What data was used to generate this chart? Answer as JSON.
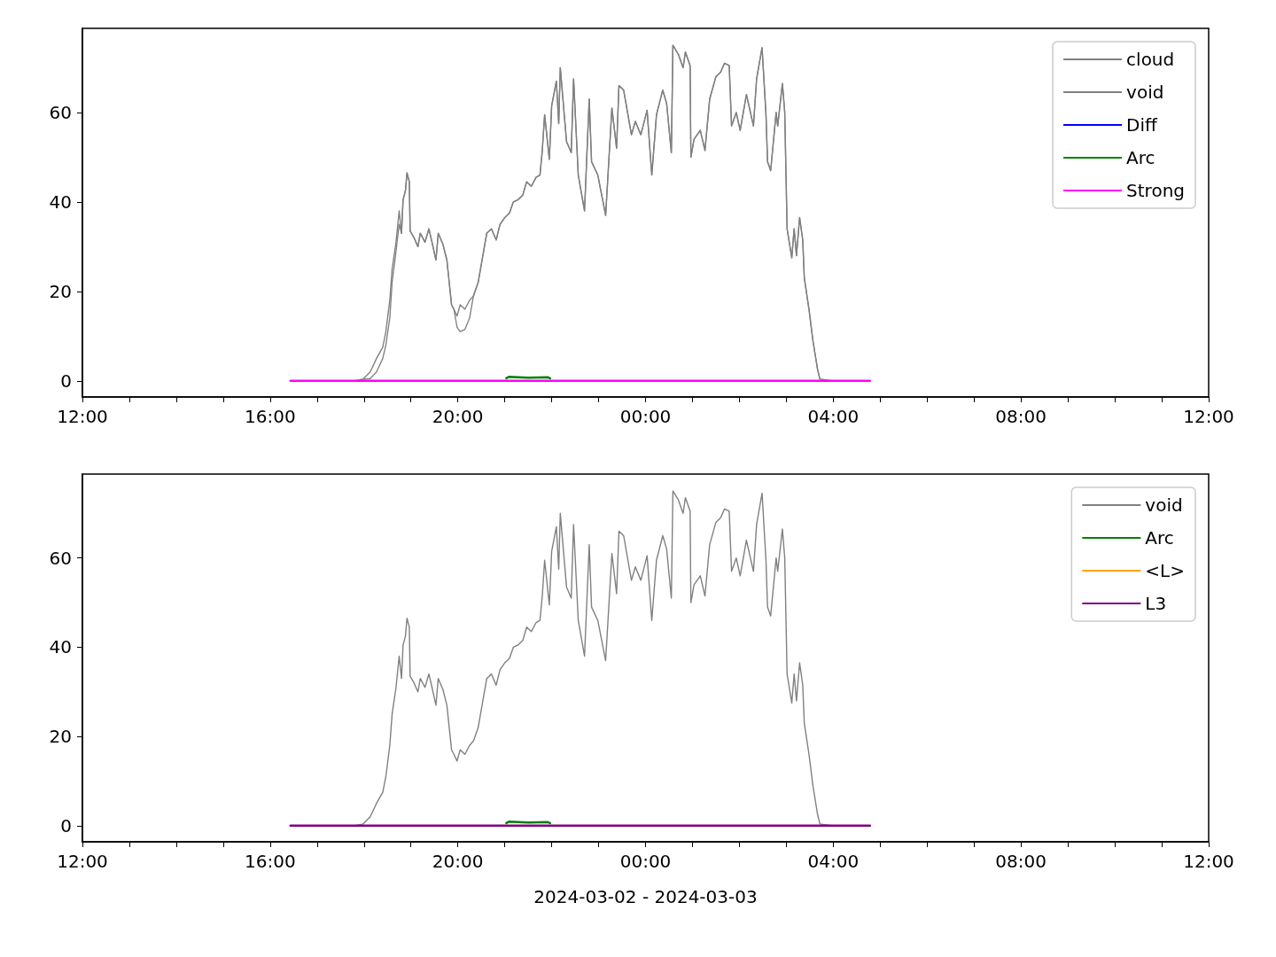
{
  "chart_data": [
    {
      "type": "line",
      "xlim": [
        "2024-03-02T12:00",
        "2024-03-03T12:00"
      ],
      "xticks": [
        {
          "value": "2024-03-02T12:00",
          "label": "12:00"
        },
        {
          "value": "2024-03-02T13:00",
          "label": null
        },
        {
          "value": "2024-03-02T14:00",
          "label": null
        },
        {
          "value": "2024-03-02T15:00",
          "label": null
        },
        {
          "value": "2024-03-02T16:00",
          "label": "16:00"
        },
        {
          "value": "2024-03-02T17:00",
          "label": null
        },
        {
          "value": "2024-03-02T18:00",
          "label": null
        },
        {
          "value": "2024-03-02T19:00",
          "label": null
        },
        {
          "value": "2024-03-02T20:00",
          "label": "20:00"
        },
        {
          "value": "2024-03-02T21:00",
          "label": null
        },
        {
          "value": "2024-03-02T22:00",
          "label": null
        },
        {
          "value": "2024-03-02T23:00",
          "label": null
        },
        {
          "value": "2024-03-03T00:00",
          "label": "00:00"
        },
        {
          "value": "2024-03-03T01:00",
          "label": null
        },
        {
          "value": "2024-03-03T02:00",
          "label": null
        },
        {
          "value": "2024-03-03T03:00",
          "label": null
        },
        {
          "value": "2024-03-03T04:00",
          "label": "04:00"
        },
        {
          "value": "2024-03-03T05:00",
          "label": null
        },
        {
          "value": "2024-03-03T06:00",
          "label": null
        },
        {
          "value": "2024-03-03T07:00",
          "label": null
        },
        {
          "value": "2024-03-03T08:00",
          "label": "08:00"
        },
        {
          "value": "2024-03-03T09:00",
          "label": null
        },
        {
          "value": "2024-03-03T10:00",
          "label": null
        },
        {
          "value": "2024-03-03T11:00",
          "label": null
        },
        {
          "value": "2024-03-03T12:00",
          "label": "12:00"
        }
      ],
      "ylim": [
        -3.6,
        78.8
      ],
      "yticks": [
        0,
        20,
        40,
        60
      ],
      "grid": false,
      "legend": "top right",
      "series": [
        {
          "name": "cloud",
          "color": "#808080",
          "line_style": "dashed",
          "x": [
            "2024-03-02T17:59",
            "2024-03-02T18:08",
            "2024-03-02T18:16",
            "2024-03-02T18:24",
            "2024-03-02T18:28",
            "2024-03-02T18:33",
            "2024-03-02T18:36",
            "2024-03-02T18:41",
            "2024-03-02T18:45",
            "2024-03-02T18:48",
            "2024-03-02T18:50",
            "2024-03-02T18:53",
            "2024-03-02T18:55",
            "2024-03-02T18:58",
            "2024-03-02T18:59",
            "2024-03-02T19:04",
            "2024-03-02T19:09",
            "2024-03-02T19:12",
            "2024-03-02T19:18",
            "2024-03-02T19:23",
            "2024-03-02T19:27",
            "2024-03-02T19:32",
            "2024-03-02T19:35",
            "2024-03-02T19:41",
            "2024-03-02T19:46",
            "2024-03-02T19:52",
            "2024-03-02T19:55",
            "2024-03-02T19:59",
            "2024-03-02T20:03",
            "2024-03-02T20:09",
            "2024-03-02T20:15",
            "2024-03-02T20:20",
            "2024-03-02T20:26",
            "2024-03-02T20:32",
            "2024-03-02T20:37",
            "2024-03-02T20:43",
            "2024-03-02T20:49",
            "2024-03-02T20:54",
            "2024-03-02T21:00",
            "2024-03-02T21:06",
            "2024-03-02T21:11",
            "2024-03-02T21:17",
            "2024-03-02T21:23",
            "2024-03-02T21:28",
            "2024-03-02T21:34",
            "2024-03-02T21:40",
            "2024-03-02T21:45",
            "2024-03-02T21:48",
            "2024-03-02T21:51",
            "2024-03-02T21:57",
            "2024-03-02T22:00",
            "2024-03-02T22:06",
            "2024-03-02T22:09",
            "2024-03-02T22:11",
            "2024-03-02T22:19",
            "2024-03-02T22:25",
            "2024-03-02T22:28",
            "2024-03-02T22:34",
            "2024-03-02T22:42",
            "2024-03-02T22:48",
            "2024-03-02T22:51",
            "2024-03-02T22:59",
            "2024-03-02T23:09",
            "2024-03-02T23:17",
            "2024-03-02T23:23",
            "2024-03-02T23:26",
            "2024-03-02T23:32",
            "2024-03-02T23:42",
            "2024-03-02T23:47",
            "2024-03-02T23:54",
            "2024-03-03T00:02",
            "2024-03-03T00:08",
            "2024-03-03T00:14",
            "2024-03-03T00:22",
            "2024-03-03T00:27",
            "2024-03-03T00:33",
            "2024-03-03T00:35",
            "2024-03-03T00:42",
            "2024-03-03T00:48",
            "2024-03-03T00:51",
            "2024-03-03T00:57",
            "2024-03-03T00:58",
            "2024-03-03T01:02",
            "2024-03-03T01:10",
            "2024-03-03T01:16",
            "2024-03-03T01:22",
            "2024-03-03T01:30",
            "2024-03-03T01:36",
            "2024-03-03T01:41",
            "2024-03-03T01:47",
            "2024-03-03T01:50",
            "2024-03-03T01:56",
            "2024-03-03T02:01",
            "2024-03-03T02:09",
            "2024-03-03T02:18",
            "2024-03-03T02:22",
            "2024-03-03T02:29",
            "2024-03-03T02:34",
            "2024-03-03T02:36",
            "2024-03-03T02:40",
            "2024-03-03T02:47",
            "2024-03-03T02:49",
            "2024-03-03T02:55",
            "2024-03-03T02:58",
            "2024-03-03T03:01",
            "2024-03-03T03:07",
            "2024-03-03T03:10",
            "2024-03-03T03:13",
            "2024-03-03T03:17",
            "2024-03-03T03:21",
            "2024-03-03T03:23",
            "2024-03-03T03:29",
            "2024-03-03T03:34",
            "2024-03-03T03:40",
            "2024-03-03T03:43"
          ],
          "values": [
            0.4,
            0.5,
            2,
            5,
            8,
            14,
            22,
            29,
            35,
            33,
            40.5,
            42.5,
            46.5,
            44.5,
            33.5,
            32,
            30,
            33,
            31,
            34,
            31,
            27,
            33,
            30.5,
            27,
            17,
            16,
            12,
            11,
            11.5,
            14,
            19,
            22,
            28,
            33,
            34,
            31.5,
            35,
            36.5,
            37.5,
            40,
            40.5,
            41.5,
            44.5,
            43.5,
            45.5,
            46,
            51.5,
            59.5,
            49.5,
            61.5,
            67,
            57.5,
            70,
            53.5,
            51,
            67.5,
            46,
            38,
            63,
            49,
            46,
            37,
            61,
            52,
            66,
            65,
            55,
            58,
            55,
            60.5,
            46,
            59.5,
            65,
            62,
            51,
            75,
            73,
            70,
            73.5,
            70.5,
            50,
            54,
            56,
            51.5,
            63,
            68,
            69,
            71,
            70.5,
            57,
            60,
            56,
            64,
            57,
            67.5,
            74.5,
            59.5,
            49,
            47,
            60,
            57,
            66.5,
            60,
            34,
            27.5,
            34,
            28,
            36.5,
            31.5,
            23,
            16,
            9,
            2.5,
            0.4
          ]
        },
        {
          "name": "void",
          "color": "#808080",
          "x": [
            "2024-03-02T16:26",
            "2024-03-02T17:47",
            "2024-03-02T17:59",
            "2024-03-02T18:08",
            "2024-03-02T18:16",
            "2024-03-02T18:24",
            "2024-03-02T18:28",
            "2024-03-02T18:33",
            "2024-03-02T18:36",
            "2024-03-02T18:41",
            "2024-03-02T18:45",
            "2024-03-02T18:48",
            "2024-03-02T18:50",
            "2024-03-02T18:53",
            "2024-03-02T18:55",
            "2024-03-02T18:58",
            "2024-03-02T18:59",
            "2024-03-02T19:04",
            "2024-03-02T19:09",
            "2024-03-02T19:12",
            "2024-03-02T19:18",
            "2024-03-02T19:23",
            "2024-03-02T19:27",
            "2024-03-02T19:32",
            "2024-03-02T19:35",
            "2024-03-02T19:41",
            "2024-03-02T19:46",
            "2024-03-02T19:52",
            "2024-03-02T19:55",
            "2024-03-02T19:59",
            "2024-03-02T20:03",
            "2024-03-02T20:09",
            "2024-03-02T20:15",
            "2024-03-02T20:20",
            "2024-03-02T20:26",
            "2024-03-02T20:32",
            "2024-03-02T20:37",
            "2024-03-02T20:43",
            "2024-03-02T20:49",
            "2024-03-02T20:54",
            "2024-03-02T21:00",
            "2024-03-02T21:06",
            "2024-03-02T21:11",
            "2024-03-02T21:17",
            "2024-03-02T21:23",
            "2024-03-02T21:28",
            "2024-03-02T21:34",
            "2024-03-02T21:40",
            "2024-03-02T21:45",
            "2024-03-02T21:48",
            "2024-03-02T21:51",
            "2024-03-02T21:57",
            "2024-03-02T22:00",
            "2024-03-02T22:06",
            "2024-03-02T22:09",
            "2024-03-02T22:11",
            "2024-03-02T22:19",
            "2024-03-02T22:25",
            "2024-03-02T22:28",
            "2024-03-02T22:34",
            "2024-03-02T22:42",
            "2024-03-02T22:48",
            "2024-03-02T22:51",
            "2024-03-02T22:59",
            "2024-03-02T23:09",
            "2024-03-02T23:17",
            "2024-03-02T23:23",
            "2024-03-02T23:26",
            "2024-03-02T23:32",
            "2024-03-02T23:42",
            "2024-03-02T23:47",
            "2024-03-02T23:54",
            "2024-03-03T00:02",
            "2024-03-03T00:08",
            "2024-03-03T00:14",
            "2024-03-03T00:22",
            "2024-03-03T00:27",
            "2024-03-03T00:33",
            "2024-03-03T00:35",
            "2024-03-03T00:42",
            "2024-03-03T00:48",
            "2024-03-03T00:51",
            "2024-03-03T00:57",
            "2024-03-03T00:58",
            "2024-03-03T01:02",
            "2024-03-03T01:10",
            "2024-03-03T01:16",
            "2024-03-03T01:22",
            "2024-03-03T01:30",
            "2024-03-03T01:36",
            "2024-03-03T01:41",
            "2024-03-03T01:47",
            "2024-03-03T01:50",
            "2024-03-03T01:56",
            "2024-03-03T02:01",
            "2024-03-03T02:09",
            "2024-03-03T02:18",
            "2024-03-03T02:22",
            "2024-03-03T02:29",
            "2024-03-03T02:34",
            "2024-03-03T02:36",
            "2024-03-03T02:40",
            "2024-03-03T02:47",
            "2024-03-03T02:49",
            "2024-03-03T02:55",
            "2024-03-03T02:58",
            "2024-03-03T03:01",
            "2024-03-03T03:07",
            "2024-03-03T03:10",
            "2024-03-03T03:13",
            "2024-03-03T03:17",
            "2024-03-03T03:21",
            "2024-03-03T03:23",
            "2024-03-03T03:29",
            "2024-03-03T03:34",
            "2024-03-03T03:40",
            "2024-03-03T03:43",
            "2024-03-03T04:00",
            "2024-03-03T04:47"
          ],
          "values": [
            0,
            0,
            0.4,
            2,
            5,
            7.5,
            11,
            18,
            25,
            31,
            38,
            33,
            40.5,
            42.5,
            46.5,
            44.5,
            33.5,
            32,
            30,
            33,
            31,
            34,
            31,
            27,
            33,
            30.5,
            27,
            17,
            16,
            14.5,
            17,
            16,
            18,
            19,
            22,
            28,
            33,
            34,
            31.5,
            35,
            36.5,
            37.5,
            40,
            40.5,
            41.5,
            44.5,
            43.5,
            45.5,
            46,
            51.5,
            59.5,
            49.5,
            61.5,
            67,
            57.5,
            70,
            53.5,
            51,
            67.5,
            46,
            38,
            63,
            49,
            46,
            37,
            61,
            52,
            66,
            65,
            55,
            58,
            55,
            60.5,
            46,
            59.5,
            65,
            62,
            51,
            75,
            73,
            70,
            73.5,
            70.5,
            50,
            54,
            56,
            51.5,
            63,
            68,
            69,
            71,
            70.5,
            57,
            60,
            56,
            64,
            57,
            67.5,
            74.5,
            59.5,
            49,
            47,
            60,
            57,
            66.5,
            60,
            34,
            27.5,
            34,
            28,
            36.5,
            31.5,
            23,
            16,
            9,
            2.5,
            0.4,
            0,
            0
          ]
        },
        {
          "name": "Diff",
          "color": "#0000ff"
        },
        {
          "name": "Arc",
          "color": "#008000",
          "x": [
            "2024-03-02T21:02",
            "2024-03-02T21:05",
            "2024-03-02T21:30",
            "2024-03-02T21:55",
            "2024-03-02T21:58"
          ],
          "values": [
            0.6,
            0.9,
            0.7,
            0.8,
            0.6
          ]
        },
        {
          "name": "Strong",
          "color": "#ff00ff",
          "x": [
            "2024-03-02T16:26",
            "2024-03-03T04:47"
          ],
          "values": [
            0,
            0
          ]
        }
      ]
    },
    {
      "type": "line",
      "xlabel": "2024-03-02 - 2024-03-03",
      "xlim": [
        "2024-03-02T12:00",
        "2024-03-03T12:00"
      ],
      "xticks": [
        {
          "value": "2024-03-02T12:00",
          "label": "12:00"
        },
        {
          "value": "2024-03-02T13:00",
          "label": null
        },
        {
          "value": "2024-03-02T14:00",
          "label": null
        },
        {
          "value": "2024-03-02T15:00",
          "label": null
        },
        {
          "value": "2024-03-02T16:00",
          "label": "16:00"
        },
        {
          "value": "2024-03-02T17:00",
          "label": null
        },
        {
          "value": "2024-03-02T18:00",
          "label": null
        },
        {
          "value": "2024-03-02T19:00",
          "label": null
        },
        {
          "value": "2024-03-02T20:00",
          "label": "20:00"
        },
        {
          "value": "2024-03-02T21:00",
          "label": null
        },
        {
          "value": "2024-03-02T22:00",
          "label": null
        },
        {
          "value": "2024-03-02T23:00",
          "label": null
        },
        {
          "value": "2024-03-03T00:00",
          "label": "00:00"
        },
        {
          "value": "2024-03-03T01:00",
          "label": null
        },
        {
          "value": "2024-03-03T02:00",
          "label": null
        },
        {
          "value": "2024-03-03T03:00",
          "label": null
        },
        {
          "value": "2024-03-03T04:00",
          "label": "04:00"
        },
        {
          "value": "2024-03-03T05:00",
          "label": null
        },
        {
          "value": "2024-03-03T06:00",
          "label": null
        },
        {
          "value": "2024-03-03T07:00",
          "label": null
        },
        {
          "value": "2024-03-03T08:00",
          "label": "08:00"
        },
        {
          "value": "2024-03-03T09:00",
          "label": null
        },
        {
          "value": "2024-03-03T10:00",
          "label": null
        },
        {
          "value": "2024-03-03T11:00",
          "label": null
        },
        {
          "value": "2024-03-03T12:00",
          "label": "12:00"
        }
      ],
      "ylim": [
        -3.6,
        78.8
      ],
      "yticks": [
        0,
        20,
        40,
        60
      ],
      "grid": false,
      "legend": "top right",
      "series": [
        {
          "name": "void",
          "color": "#808080",
          "x": [
            "2024-03-02T16:26",
            "2024-03-02T17:47",
            "2024-03-02T17:59",
            "2024-03-02T18:08",
            "2024-03-02T18:16",
            "2024-03-02T18:24",
            "2024-03-02T18:28",
            "2024-03-02T18:33",
            "2024-03-02T18:36",
            "2024-03-02T18:41",
            "2024-03-02T18:45",
            "2024-03-02T18:48",
            "2024-03-02T18:50",
            "2024-03-02T18:53",
            "2024-03-02T18:55",
            "2024-03-02T18:58",
            "2024-03-02T18:59",
            "2024-03-02T19:04",
            "2024-03-02T19:09",
            "2024-03-02T19:12",
            "2024-03-02T19:18",
            "2024-03-02T19:23",
            "2024-03-02T19:27",
            "2024-03-02T19:32",
            "2024-03-02T19:35",
            "2024-03-02T19:41",
            "2024-03-02T19:46",
            "2024-03-02T19:52",
            "2024-03-02T19:55",
            "2024-03-02T19:59",
            "2024-03-02T20:03",
            "2024-03-02T20:09",
            "2024-03-02T20:15",
            "2024-03-02T20:20",
            "2024-03-02T20:26",
            "2024-03-02T20:32",
            "2024-03-02T20:37",
            "2024-03-02T20:43",
            "2024-03-02T20:49",
            "2024-03-02T20:54",
            "2024-03-02T21:00",
            "2024-03-02T21:06",
            "2024-03-02T21:11",
            "2024-03-02T21:17",
            "2024-03-02T21:23",
            "2024-03-02T21:28",
            "2024-03-02T21:34",
            "2024-03-02T21:40",
            "2024-03-02T21:45",
            "2024-03-02T21:48",
            "2024-03-02T21:51",
            "2024-03-02T21:57",
            "2024-03-02T22:00",
            "2024-03-02T22:06",
            "2024-03-02T22:09",
            "2024-03-02T22:11",
            "2024-03-02T22:19",
            "2024-03-02T22:25",
            "2024-03-02T22:28",
            "2024-03-02T22:34",
            "2024-03-02T22:42",
            "2024-03-02T22:48",
            "2024-03-02T22:51",
            "2024-03-02T22:59",
            "2024-03-02T23:09",
            "2024-03-02T23:17",
            "2024-03-02T23:23",
            "2024-03-02T23:26",
            "2024-03-02T23:32",
            "2024-03-02T23:42",
            "2024-03-02T23:47",
            "2024-03-02T23:54",
            "2024-03-03T00:02",
            "2024-03-03T00:08",
            "2024-03-03T00:14",
            "2024-03-03T00:22",
            "2024-03-03T00:27",
            "2024-03-03T00:33",
            "2024-03-03T00:35",
            "2024-03-03T00:42",
            "2024-03-03T00:48",
            "2024-03-03T00:51",
            "2024-03-03T00:57",
            "2024-03-03T00:58",
            "2024-03-03T01:02",
            "2024-03-03T01:10",
            "2024-03-03T01:16",
            "2024-03-03T01:22",
            "2024-03-03T01:30",
            "2024-03-03T01:36",
            "2024-03-03T01:41",
            "2024-03-03T01:47",
            "2024-03-03T01:50",
            "2024-03-03T01:56",
            "2024-03-03T02:01",
            "2024-03-03T02:09",
            "2024-03-03T02:18",
            "2024-03-03T02:22",
            "2024-03-03T02:29",
            "2024-03-03T02:34",
            "2024-03-03T02:36",
            "2024-03-03T02:40",
            "2024-03-03T02:47",
            "2024-03-03T02:49",
            "2024-03-03T02:55",
            "2024-03-03T02:58",
            "2024-03-03T03:01",
            "2024-03-03T03:07",
            "2024-03-03T03:10",
            "2024-03-03T03:13",
            "2024-03-03T03:17",
            "2024-03-03T03:21",
            "2024-03-03T03:23",
            "2024-03-03T03:29",
            "2024-03-03T03:34",
            "2024-03-03T03:40",
            "2024-03-03T03:43",
            "2024-03-03T04:00",
            "2024-03-03T04:47"
          ],
          "values": [
            0,
            0,
            0.4,
            2,
            5,
            7.5,
            11,
            18,
            25,
            31,
            38,
            33,
            40.5,
            42.5,
            46.5,
            44.5,
            33.5,
            32,
            30,
            33,
            31,
            34,
            31,
            27,
            33,
            30.5,
            27,
            17,
            16,
            14.5,
            17,
            16,
            18,
            19,
            22,
            28,
            33,
            34,
            31.5,
            35,
            36.5,
            37.5,
            40,
            40.5,
            41.5,
            44.5,
            43.5,
            45.5,
            46,
            51.5,
            59.5,
            49.5,
            61.5,
            67,
            57.5,
            70,
            53.5,
            51,
            67.5,
            46,
            38,
            63,
            49,
            46,
            37,
            61,
            52,
            66,
            65,
            55,
            58,
            55,
            60.5,
            46,
            59.5,
            65,
            62,
            51,
            75,
            73,
            70,
            73.5,
            70.5,
            50,
            54,
            56,
            51.5,
            63,
            68,
            69,
            71,
            70.5,
            57,
            60,
            56,
            64,
            57,
            67.5,
            74.5,
            59.5,
            49,
            47,
            60,
            57,
            66.5,
            60,
            34,
            27.5,
            34,
            28,
            36.5,
            31.5,
            23,
            16,
            9,
            2.5,
            0.4,
            0,
            0
          ]
        },
        {
          "name": "Arc",
          "color": "#008000",
          "x": [
            "2024-03-02T21:02",
            "2024-03-02T21:05",
            "2024-03-02T21:30",
            "2024-03-02T21:55",
            "2024-03-02T21:58"
          ],
          "values": [
            0.6,
            0.9,
            0.7,
            0.8,
            0.6
          ]
        },
        {
          "name": "<L>",
          "color": "#ffa500"
        },
        {
          "name": "L3",
          "color": "#800080",
          "x": [
            "2024-03-02T16:26",
            "2024-03-03T04:47"
          ],
          "values": [
            0,
            0
          ]
        }
      ]
    }
  ]
}
